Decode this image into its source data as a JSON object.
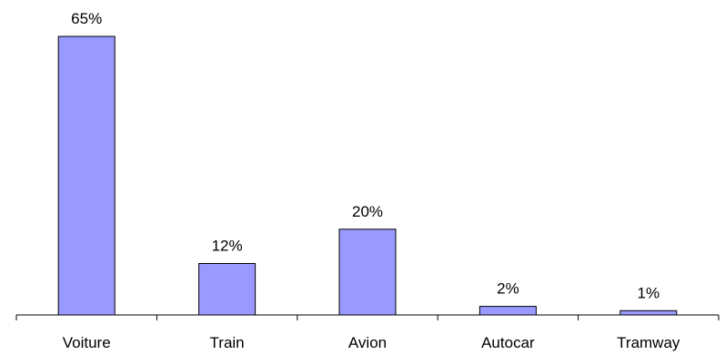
{
  "chart_data": {
    "type": "bar",
    "categories": [
      "Voiture",
      "Train",
      "Avion",
      "Autocar",
      "Tramway"
    ],
    "values": [
      65,
      12,
      20,
      2,
      1
    ],
    "data_labels": [
      "65%",
      "12%",
      "20%",
      "2%",
      "1%"
    ],
    "title": "",
    "xlabel": "",
    "ylabel": "",
    "ylim": [
      0,
      65
    ],
    "grid": false,
    "legend": "none",
    "bar_color": "#9999ff",
    "bar_edge_color": "#000000"
  }
}
